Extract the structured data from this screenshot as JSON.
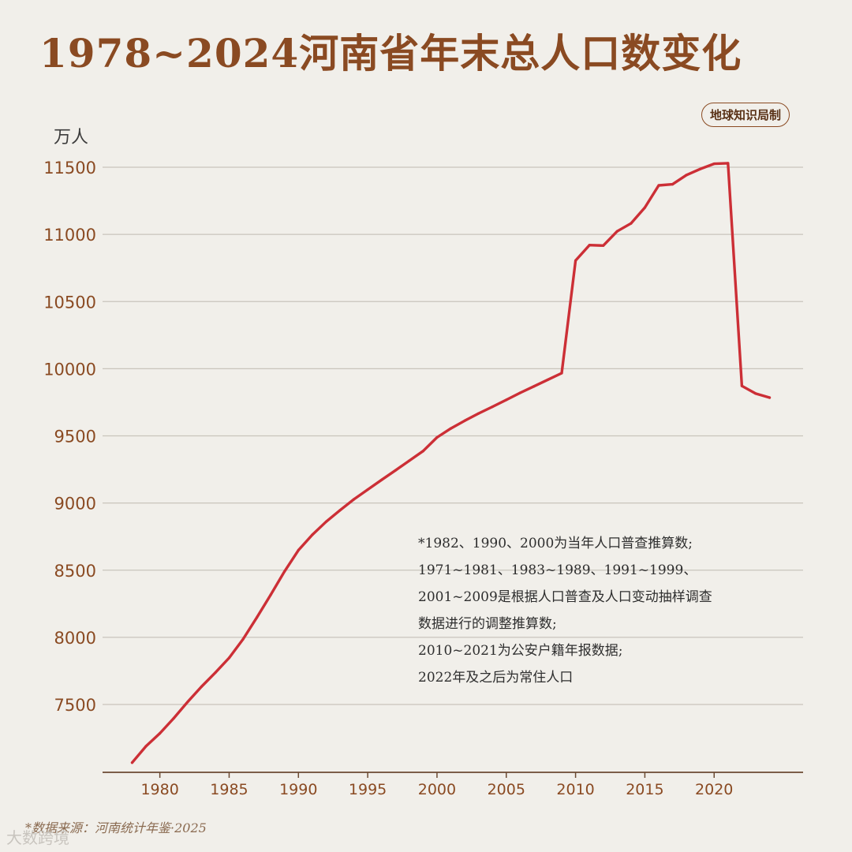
{
  "header": {
    "title": "1978~2024河南省年末总人口数变化",
    "badge": "地球知识局制"
  },
  "notes": [
    "*1982、1990、2000为当年人口普查推算数;",
    "1971~1981、1983~1989、1991~1999、",
    "2001~2009是根据人口普查及人口变动抽样调查",
    "数据进行的调整推算数;",
    "2010~2021为公安户籍年报数据;",
    "2022年及之后为常住人口"
  ],
  "source": "*数据来源：河南统计年鉴·2025",
  "footer": {
    "logo_text": "大数跨境"
  },
  "chart_data": {
    "type": "line",
    "title": "1978~2024河南省年末总人口数变化",
    "ylabel": "万人",
    "xlabel": "",
    "xlim": [
      1975,
      2025
    ],
    "ylim": [
      7000,
      11750
    ],
    "x_ticks": [
      1980,
      1985,
      1990,
      1995,
      2000,
      2005,
      2010,
      2015,
      2020
    ],
    "y_ticks": [
      7500,
      8000,
      8500,
      9000,
      9500,
      10000,
      10500,
      11000,
      11500
    ],
    "grid": "horizontal",
    "colors": {
      "line": "#cc2f36",
      "axis": "#6b4a32",
      "grid": "#c9c4bc",
      "tick_label": "#8a4a22"
    },
    "series": [
      {
        "x": [
          1978,
          1979,
          1980,
          1981,
          1982,
          1983,
          1984,
          1985,
          1986,
          1987,
          1988,
          1989,
          1990,
          1991,
          1992,
          1993,
          1994,
          1995,
          1996,
          1997,
          1998,
          1999,
          2000,
          2001,
          2002,
          2003,
          2004,
          2005,
          2006,
          2007,
          2008,
          2009,
          2010,
          2011,
          2012,
          2013,
          2014,
          2015,
          2016,
          2017,
          2018,
          2019,
          2020,
          2021,
          2022,
          2023,
          2024
        ],
        "values": [
          7067,
          7189,
          7285,
          7397,
          7519,
          7632,
          7737,
          7847,
          7985,
          8148,
          8317,
          8491,
          8649,
          8763,
          8861,
          8946,
          9027,
          9100,
          9172,
          9243,
          9315,
          9387,
          9488,
          9555,
          9613,
          9667,
          9717,
          9768,
          9820,
          9869,
          9918,
          9967,
          10805,
          10920,
          10917,
          11023,
          11082,
          11200,
          11365,
          11373,
          11442,
          11487,
          11526,
          11530,
          9872,
          9815,
          9785
        ]
      }
    ]
  }
}
